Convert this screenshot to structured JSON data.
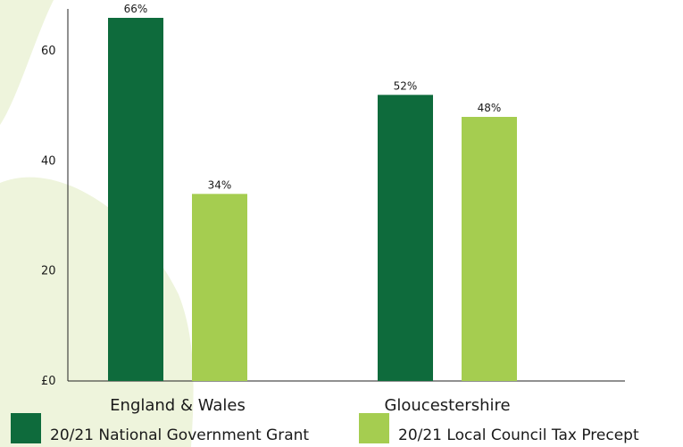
{
  "chart_data": {
    "type": "bar",
    "title": "",
    "xlabel": "",
    "ylabel": "",
    "categories": [
      "England & Wales",
      "Gloucestershire"
    ],
    "series": [
      {
        "name": "20/21 National Government Grant",
        "color": "#0e6b3c",
        "values": [
          66,
          52
        ],
        "labels": [
          "66%",
          "52%"
        ]
      },
      {
        "name": "20/21 Local Council Tax Precept",
        "color": "#a5cd50",
        "values": [
          34,
          48
        ],
        "labels": [
          "34%",
          "48%"
        ]
      }
    ],
    "ylim": [
      0,
      66
    ],
    "yticks": [
      0,
      20,
      40,
      60
    ],
    "ytick_labels": [
      "£0",
      "20",
      "40",
      "60"
    ],
    "grid": false,
    "legend_position": "bottom"
  },
  "background_colors": {
    "blob": "#eef4dc"
  }
}
